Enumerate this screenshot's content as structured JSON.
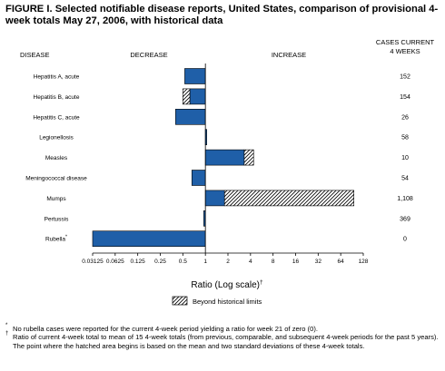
{
  "figure": {
    "title": "FIGURE I. Selected notifiable disease reports, United States, comparison of provisional 4-week totals May 27, 2006, with historical data"
  },
  "headers": {
    "disease": "DISEASE",
    "decrease": "DECREASE",
    "increase": "INCREASE",
    "cases_line1": "CASES CURRENT",
    "cases_line2": "4 WEEKS"
  },
  "chart_data": {
    "type": "bar",
    "orientation": "horizontal",
    "x_scale": "log2",
    "xlim": [
      0.03125,
      128
    ],
    "xlabel": "Ratio (Log scale)",
    "xlabel_mark": "†",
    "x_ticks": [
      "0.03125",
      "0.0625",
      "0.125",
      "0.25",
      "0.5",
      "1",
      "2",
      "4",
      "8",
      "16",
      "32",
      "64",
      "128"
    ],
    "legend": {
      "label": "Beyond historical limits",
      "placement": "bottom-center"
    },
    "colors": {
      "bar": "#1f5fa8",
      "hatch": "#000000"
    },
    "rows": [
      {
        "disease": "Hepatitis A, acute",
        "ratio": 0.53,
        "hatch_from": null,
        "cases": "152"
      },
      {
        "disease": "Hepatitis B, acute",
        "ratio": 0.5,
        "hatch_from": 0.62,
        "cases": "154"
      },
      {
        "disease": "Hepatitis C, acute",
        "ratio": 0.4,
        "hatch_from": null,
        "cases": "26"
      },
      {
        "disease": "Legionellosis",
        "ratio": 1.04,
        "hatch_from": null,
        "cases": "58"
      },
      {
        "disease": "Measles",
        "ratio": 4.4,
        "hatch_from": 3.3,
        "cases": "10"
      },
      {
        "disease": "Meningococcal disease",
        "ratio": 0.66,
        "hatch_from": null,
        "cases": "54"
      },
      {
        "disease": "Mumps",
        "ratio": 96,
        "hatch_from": 1.8,
        "cases": "1,108"
      },
      {
        "disease": "Pertussis",
        "ratio": 0.95,
        "hatch_from": null,
        "cases": "369"
      },
      {
        "disease": "Rubella",
        "disease_mark": "*",
        "ratio": 0.03125,
        "hatch_from": null,
        "cases": "0"
      }
    ]
  },
  "footnotes": [
    {
      "mark": "*",
      "text": "No rubella cases were reported for the current 4-week period yielding a ratio for week 21 of zero (0)."
    },
    {
      "mark": "†",
      "text": "Ratio of current 4-week total to mean of 15 4-week totals (from previous, comparable, and subsequent 4-week periods for the past 5 years). The point where the hatched area begins is based on the mean and two standard deviations of these 4-week totals."
    }
  ]
}
